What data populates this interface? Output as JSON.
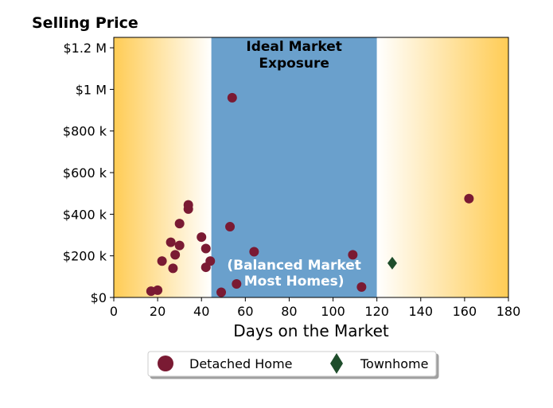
{
  "chart_data": {
    "type": "scatter",
    "ylabel": "Selling Price",
    "xlabel": "Days on the Market",
    "xlim": [
      0,
      180
    ],
    "ylim": [
      0,
      1250000
    ],
    "x_ticks": [
      0,
      20,
      40,
      60,
      80,
      100,
      120,
      140,
      160,
      180
    ],
    "y_ticks": [
      0,
      200000,
      400000,
      600000,
      800000,
      1000000,
      1200000
    ],
    "y_tick_labels": [
      "$0",
      "$200 k",
      "$400 k",
      "$600 k",
      "$800 k",
      "$1 M",
      "$1.2 M"
    ],
    "grid": false,
    "legend_position": "bottom-center",
    "zones": {
      "ideal_range": [
        44.5,
        120
      ],
      "ideal_label_top": [
        "Ideal Market",
        "Exposure"
      ],
      "ideal_label_bottom": [
        "(Balanced Market",
        "Most Homes)"
      ]
    },
    "colors": {
      "detached": "#7a1a33",
      "townhome": "#1e4d2b",
      "ideal_zone": "#6aa0cc",
      "gradient_edge": "#ffcc55",
      "gradient_mid": "#ffffff",
      "bottom_label": "#ffffff",
      "top_label": "#000000"
    },
    "series": [
      {
        "name": "Detached Home",
        "marker": "circle",
        "points": [
          [
            17,
            30000
          ],
          [
            20,
            35000
          ],
          [
            22,
            175000
          ],
          [
            26,
            265000
          ],
          [
            27,
            140000
          ],
          [
            28,
            205000
          ],
          [
            30,
            250000
          ],
          [
            30,
            355000
          ],
          [
            34,
            425000
          ],
          [
            34,
            445000
          ],
          [
            40,
            290000
          ],
          [
            42,
            145000
          ],
          [
            42,
            235000
          ],
          [
            44,
            175000
          ],
          [
            49,
            25000
          ],
          [
            53,
            340000
          ],
          [
            54,
            960000
          ],
          [
            56,
            65000
          ],
          [
            64,
            220000
          ],
          [
            109,
            205000
          ],
          [
            113,
            50000
          ],
          [
            162,
            475000
          ]
        ]
      },
      {
        "name": "Townhome",
        "marker": "diamond",
        "points": [
          [
            127,
            165000
          ]
        ]
      }
    ]
  }
}
